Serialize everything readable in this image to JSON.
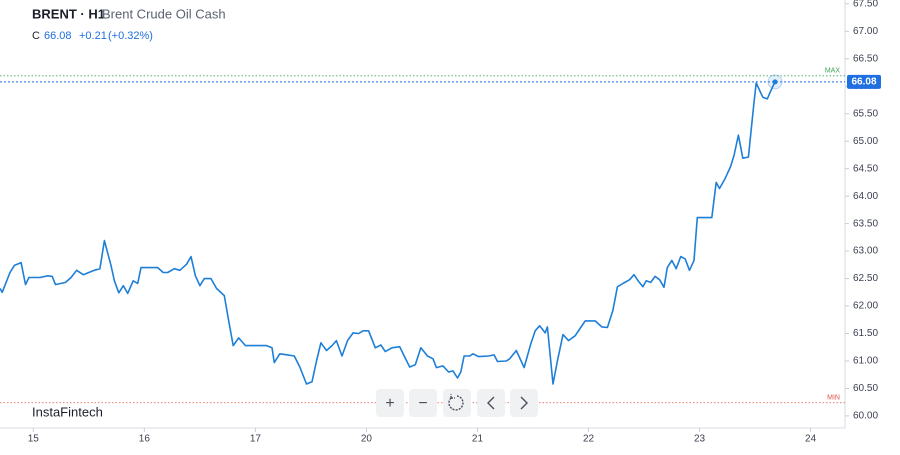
{
  "header": {
    "symbol": "BRENT · H1",
    "name": "Brent Crude Oil Cash",
    "close_label": "C",
    "change": "+0.21",
    "change_pct": "(+0.32%)"
  },
  "toolbar": [
    "+",
    "−"
  ],
  "watermark": "InstaFintech",
  "chart_data": {
    "type": "line",
    "x": [
      -0.3,
      -0.28,
      -0.21,
      -0.17,
      -0.11,
      -0.07,
      -0.04,
      0.06,
      0.13,
      0.17,
      0.2,
      0.29,
      0.34,
      0.39,
      0.45,
      0.5,
      0.55,
      0.6,
      0.64,
      0.7,
      0.73,
      0.77,
      0.81,
      0.85,
      0.9,
      0.94,
      0.97,
      1.03,
      1.12,
      1.17,
      1.21,
      1.27,
      1.32,
      1.38,
      1.42,
      1.46,
      1.5,
      1.54,
      1.6,
      1.65,
      1.72,
      1.76,
      1.8,
      1.85,
      1.91,
      1.99,
      2.1,
      2.15,
      2.17,
      2.22,
      2.29,
      2.35,
      2.4,
      2.46,
      2.51,
      2.55,
      2.59,
      2.64,
      2.69,
      2.73,
      2.78,
      2.83,
      2.88,
      2.93,
      2.97,
      3.02,
      3.08,
      3.13,
      3.17,
      3.23,
      3.3,
      3.34,
      3.39,
      3.44,
      3.49,
      3.55,
      3.6,
      3.63,
      3.69,
      3.74,
      3.78,
      3.82,
      3.85,
      3.88,
      3.93,
      3.96,
      4.01,
      4.1,
      4.15,
      4.18,
      4.26,
      4.29,
      4.35,
      4.42,
      4.48,
      4.52,
      4.56,
      4.61,
      4.63,
      4.68,
      4.72,
      4.77,
      4.82,
      4.88,
      4.93,
      4.97,
      5.06,
      5.12,
      5.17,
      5.22,
      5.26,
      5.31,
      5.37,
      5.41,
      5.45,
      5.49,
      5.52,
      5.56,
      5.6,
      5.64,
      5.68,
      5.71,
      5.75,
      5.79,
      5.83,
      5.87,
      5.91,
      5.95,
      5.98,
      6.07,
      6.11,
      6.15,
      6.18,
      6.23,
      6.28,
      6.31,
      6.35,
      6.39,
      6.44,
      6.49,
      6.51,
      6.57,
      6.61,
      6.64,
      6.68
    ],
    "series": [
      {
        "name": "Brent Crude Oil Cash",
        "color": "#1e7fd8",
        "values": [
          62.32,
          62.25,
          62.61,
          62.74,
          62.79,
          62.39,
          62.52,
          62.52,
          62.55,
          62.54,
          62.39,
          62.43,
          62.52,
          62.65,
          62.57,
          62.61,
          62.65,
          62.68,
          63.19,
          62.74,
          62.46,
          62.24,
          62.37,
          62.23,
          62.46,
          62.41,
          62.7,
          62.7,
          62.7,
          62.61,
          62.61,
          62.68,
          62.65,
          62.76,
          62.9,
          62.55,
          62.37,
          62.5,
          62.5,
          62.32,
          62.19,
          61.73,
          61.28,
          61.42,
          61.28,
          61.28,
          61.28,
          61.24,
          60.97,
          61.13,
          61.11,
          61.09,
          60.89,
          60.58,
          60.62,
          61.0,
          61.33,
          61.19,
          61.28,
          61.37,
          61.09,
          61.37,
          61.51,
          61.5,
          61.55,
          61.55,
          61.24,
          61.29,
          61.17,
          61.24,
          61.26,
          61.09,
          60.89,
          60.93,
          61.24,
          61.09,
          61.04,
          60.88,
          60.91,
          60.8,
          60.82,
          60.69,
          60.8,
          61.09,
          61.09,
          61.13,
          61.08,
          61.09,
          61.11,
          60.99,
          61.0,
          61.04,
          61.19,
          60.88,
          61.31,
          61.55,
          61.64,
          61.51,
          61.62,
          60.58,
          61.0,
          61.48,
          61.37,
          61.46,
          61.61,
          61.73,
          61.73,
          61.62,
          61.61,
          61.92,
          62.35,
          62.41,
          62.48,
          62.57,
          62.45,
          62.35,
          62.46,
          62.43,
          62.54,
          62.48,
          62.34,
          62.7,
          62.83,
          62.68,
          62.9,
          62.86,
          62.65,
          62.83,
          63.61,
          63.61,
          63.61,
          64.25,
          64.14,
          64.32,
          64.54,
          64.74,
          65.11,
          64.69,
          64.71,
          65.69,
          66.06,
          65.8,
          65.77,
          65.91,
          66.08
        ]
      }
    ],
    "xlim": [
      -0.3,
      7.31
    ],
    "xticks": [
      {
        "value": 0,
        "label": "15"
      },
      {
        "value": 1,
        "label": "16"
      },
      {
        "value": 2,
        "label": "17"
      },
      {
        "value": 3,
        "label": "20"
      },
      {
        "value": 4,
        "label": "21"
      },
      {
        "value": 5,
        "label": "22"
      },
      {
        "value": 6,
        "label": "23"
      },
      {
        "value": 7,
        "label": "24"
      }
    ],
    "ylim": [
      59.78,
      67.57
    ],
    "yticks": [
      {
        "value": 60,
        "label": "60.00"
      },
      {
        "value": 60.5,
        "label": "60.50"
      },
      {
        "value": 61,
        "label": "61.00"
      },
      {
        "value": 61.5,
        "label": "61.50"
      },
      {
        "value": 62,
        "label": "62.00"
      },
      {
        "value": 62.5,
        "label": "62.50"
      },
      {
        "value": 63,
        "label": "63.00"
      },
      {
        "value": 63.5,
        "label": "63.50"
      },
      {
        "value": 64,
        "label": "64.00"
      },
      {
        "value": 64.5,
        "label": "64.50"
      },
      {
        "value": 65,
        "label": "65.00"
      },
      {
        "value": 65.5,
        "label": "65.50"
      },
      {
        "value": 66,
        "label": "66.00"
      },
      {
        "value": 66.5,
        "label": "66.50"
      },
      {
        "value": 67,
        "label": "67.00"
      },
      {
        "value": 67.5,
        "label": "67.50"
      }
    ],
    "reference_lines": [
      {
        "label": "MAX",
        "value": 66.19,
        "color": "#3aa655"
      },
      {
        "label": "MIN",
        "value": 60.24,
        "color": "#e0524f"
      }
    ],
    "last": {
      "value": 66.08,
      "color": "#1e6fe0"
    },
    "grid": false
  }
}
